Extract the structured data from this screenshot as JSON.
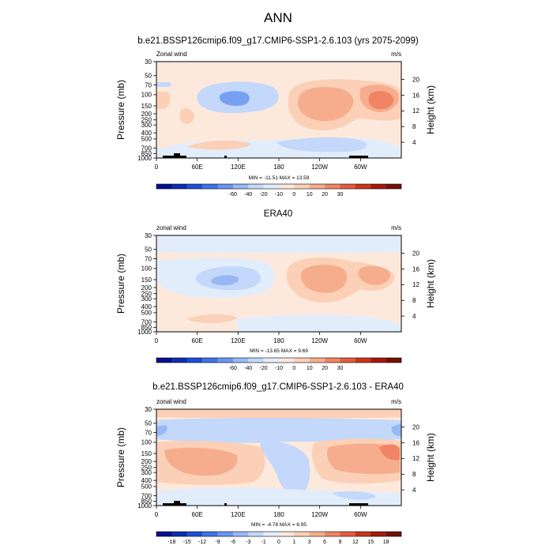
{
  "figure_title": "ANN",
  "chart_data": [
    {
      "type": "contour",
      "title": "b.e21.BSSP126cmip6.f09_g17.CMIP6-SSP1-2.6.103 (yrs 2075-2099)",
      "left_label": "Zonal wind",
      "units": "m/s",
      "ylabel": "Pressure (mb)",
      "y2label": "Height (km)",
      "x_ticks": [
        "0",
        "60E",
        "120E",
        "180",
        "120W",
        "60W"
      ],
      "pressure_ticks": [
        "30",
        "50",
        "70",
        "100",
        "150",
        "200",
        "250",
        "300",
        "400",
        "500",
        "700",
        "850",
        "1000"
      ],
      "height_ticks": [
        "20",
        "16",
        "12",
        "8",
        "4"
      ],
      "minmax_text": "MIN = -11.51  MAX =  13.59",
      "min": -11.51,
      "max": 13.59,
      "levels": [
        "-60",
        "-40",
        "-20",
        "-10",
        "0",
        "10",
        "20",
        "30"
      ],
      "topography": true
    },
    {
      "type": "contour",
      "title": "ERA40",
      "left_label": "zonal wind",
      "units": "m/s",
      "ylabel": "Pressure (mb)",
      "y2label": "Height (km)",
      "x_ticks": [
        "0",
        "60E",
        "120E",
        "180",
        "120W",
        "60W"
      ],
      "pressure_ticks": [
        "30",
        "50",
        "70",
        "100",
        "150",
        "200",
        "250",
        "300",
        "400",
        "500",
        "700",
        "850",
        "1000"
      ],
      "height_ticks": [
        "20",
        "16",
        "12",
        "8",
        "4"
      ],
      "minmax_text": "MIN = -13.65  MAX =   9.69",
      "min": -13.65,
      "max": 9.69,
      "levels": [
        "-60",
        "-40",
        "-20",
        "-10",
        "0",
        "10",
        "20",
        "30"
      ],
      "topography": false
    },
    {
      "type": "contour",
      "title": "b.e21.BSSP126cmip6.f09_g17.CMIP6-SSP1-2.6.103 - ERA40",
      "left_label": "zonal wind",
      "units": "m/s",
      "ylabel": "Pressure (mb)",
      "y2label": "Height (km)",
      "x_ticks": [
        "0",
        "60E",
        "120E",
        "180",
        "120W",
        "60W"
      ],
      "pressure_ticks": [
        "30",
        "50",
        "70",
        "100",
        "150",
        "200",
        "250",
        "300",
        "400",
        "500",
        "700",
        "850",
        "1000"
      ],
      "height_ticks": [
        "20",
        "16",
        "12",
        "8",
        "4"
      ],
      "minmax_text": "MIN =  -4.78  MAX =   6.95",
      "min": -4.78,
      "max": 6.95,
      "levels": [
        "-18",
        "-15",
        "-12",
        "-9",
        "-6",
        "-3",
        "-1",
        "0",
        "1",
        "3",
        "6",
        "9",
        "12",
        "15",
        "18"
      ],
      "topography": true
    }
  ],
  "colors": {
    "colorbar": [
      "#08108c",
      "#0c2fb0",
      "#1f4fd8",
      "#3f74e8",
      "#6a96f0",
      "#98b8f5",
      "#c3d8fa",
      "#e2edfc",
      "#fde9dc",
      "#fbd0b6",
      "#f6ad8e",
      "#ef8565",
      "#e35c3f",
      "#cc3519",
      "#a31a0c",
      "#741008"
    ]
  }
}
